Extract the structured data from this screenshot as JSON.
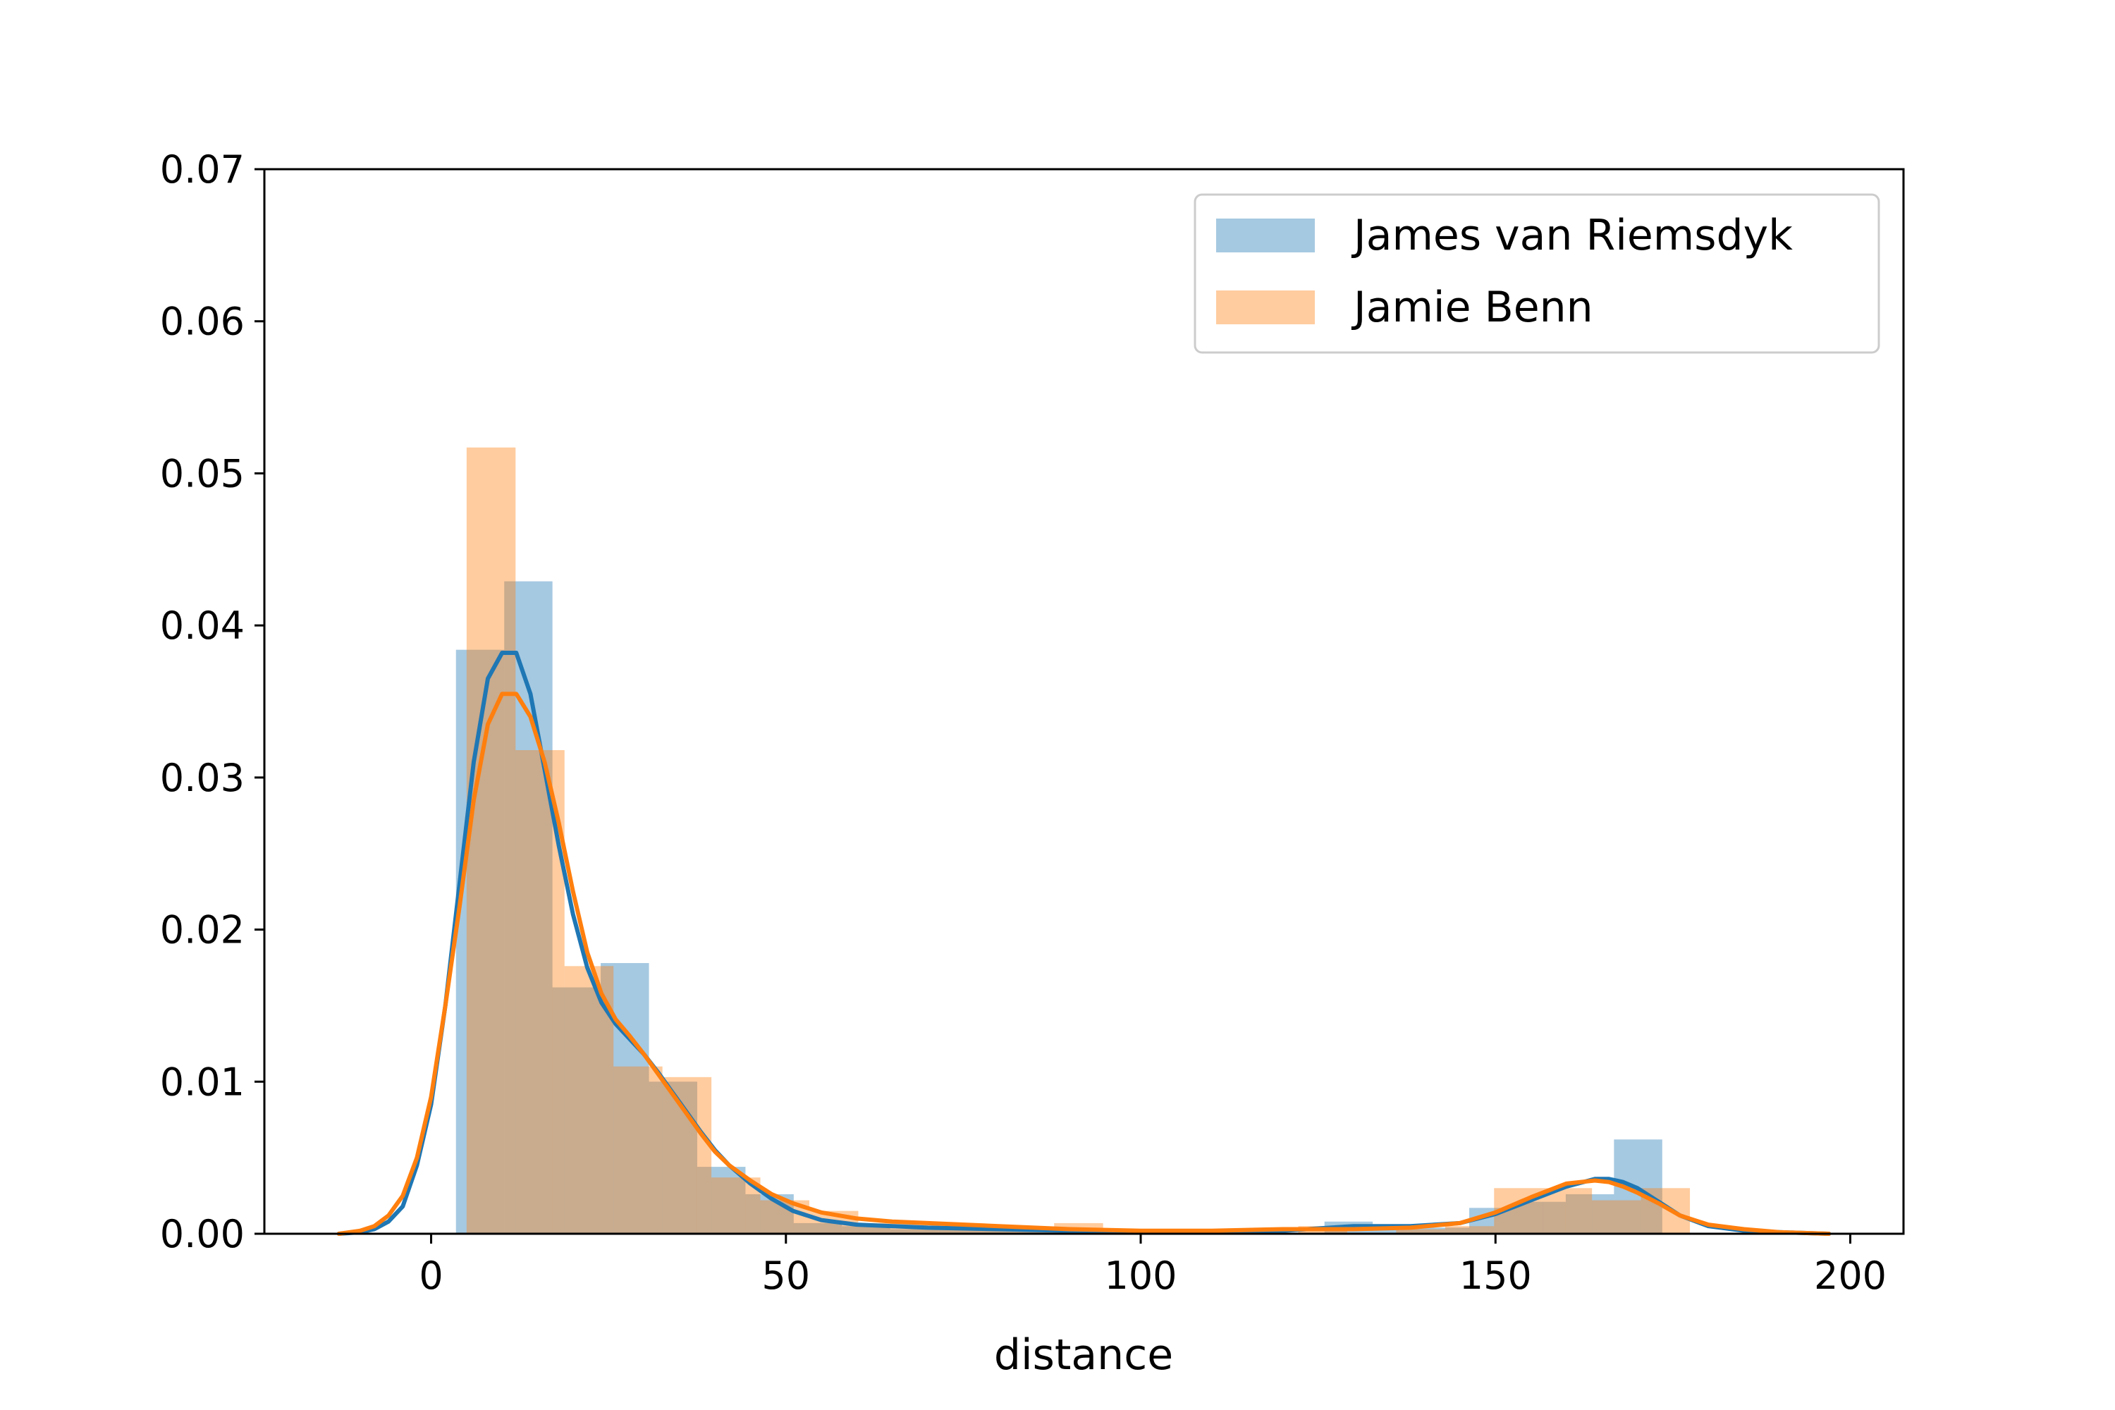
{
  "chart_data": {
    "type": "bar",
    "xlabel": "distance",
    "ylabel": "",
    "xlim": [
      -23.5,
      207.5
    ],
    "ylim": [
      0,
      0.07
    ],
    "x_ticks": [
      0,
      50,
      100,
      150,
      200
    ],
    "x_tick_labels": [
      "0",
      "50",
      "100",
      "150",
      "200"
    ],
    "y_ticks": [
      0,
      0.01,
      0.02,
      0.03,
      0.04,
      0.05,
      0.06,
      0.07
    ],
    "y_tick_labels": [
      "0.00",
      "0.01",
      "0.02",
      "0.03",
      "0.04",
      "0.05",
      "0.06",
      "0.07"
    ],
    "grid": false,
    "legend_position": "top-right",
    "series": [
      {
        "name": "James van Riemsdyk",
        "color": "#1f77b4",
        "histogram": [
          {
            "x0": 3.5,
            "x1": 10.3,
            "value": 0.0384
          },
          {
            "x0": 10.3,
            "x1": 17.1,
            "value": 0.0429
          },
          {
            "x0": 17.1,
            "x1": 23.9,
            "value": 0.0162
          },
          {
            "x0": 23.9,
            "x1": 30.7,
            "value": 0.0178
          },
          {
            "x0": 30.7,
            "x1": 37.5,
            "value": 0.01
          },
          {
            "x0": 37.5,
            "x1": 44.3,
            "value": 0.0044
          },
          {
            "x0": 44.3,
            "x1": 51.1,
            "value": 0.0026
          },
          {
            "x0": 51.1,
            "x1": 57.9,
            "value": 0.0007
          },
          {
            "x0": 57.9,
            "x1": 64.7,
            "value": 0.0005
          },
          {
            "x0": 64.7,
            "x1": 71.5,
            "value": 0.0003
          },
          {
            "x0": 71.5,
            "x1": 78.3,
            "value": 0.0003
          },
          {
            "x0": 78.3,
            "x1": 85.1,
            "value": 0.0002
          },
          {
            "x0": 85.1,
            "x1": 91.9,
            "value": 0.0002
          },
          {
            "x0": 91.9,
            "x1": 98.7,
            "value": 0.0002
          },
          {
            "x0": 125.9,
            "x1": 132.7,
            "value": 0.0008
          },
          {
            "x0": 132.7,
            "x1": 139.5,
            "value": 0.0004
          },
          {
            "x0": 139.5,
            "x1": 146.3,
            "value": 0.0004
          },
          {
            "x0": 146.3,
            "x1": 153.1,
            "value": 0.0017
          },
          {
            "x0": 153.1,
            "x1": 159.9,
            "value": 0.0021
          },
          {
            "x0": 159.9,
            "x1": 166.7,
            "value": 0.0026
          },
          {
            "x0": 166.7,
            "x1": 173.5,
            "value": 0.0062
          }
        ],
        "kde": {
          "x": [
            -13,
            -10,
            -8,
            -6,
            -4,
            -2,
            0,
            2,
            4,
            6,
            8,
            10,
            12,
            14,
            16,
            18,
            20,
            22,
            24,
            26,
            28,
            30,
            32,
            34,
            36,
            38,
            40,
            42,
            45,
            48,
            51,
            55,
            60,
            65,
            70,
            80,
            90,
            100,
            110,
            120,
            130,
            138,
            145,
            150,
            155,
            160,
            164,
            166,
            168,
            170,
            173,
            176,
            180,
            185,
            190,
            197
          ],
          "y": [
            0.0,
            0.0001,
            0.0003,
            0.0008,
            0.0018,
            0.0045,
            0.0085,
            0.015,
            0.023,
            0.031,
            0.0365,
            0.0382,
            0.0382,
            0.0355,
            0.0305,
            0.0255,
            0.021,
            0.0175,
            0.0152,
            0.0138,
            0.0128,
            0.0118,
            0.0106,
            0.0093,
            0.008,
            0.0067,
            0.0055,
            0.0045,
            0.0033,
            0.0023,
            0.0015,
            0.0009,
            0.0006,
            0.0005,
            0.0004,
            0.0003,
            0.0002,
            0.0001,
            0.0001,
            0.0002,
            0.0005,
            0.0005,
            0.0007,
            0.0013,
            0.0022,
            0.0031,
            0.0036,
            0.0036,
            0.0034,
            0.003,
            0.0021,
            0.0012,
            0.0005,
            0.0002,
            0.0001,
            0.0
          ]
        }
      },
      {
        "name": "Jamie Benn",
        "color": "#ff7f0e",
        "histogram": [
          {
            "x0": 5.0,
            "x1": 11.9,
            "value": 0.0517
          },
          {
            "x0": 11.9,
            "x1": 18.8,
            "value": 0.0318
          },
          {
            "x0": 18.8,
            "x1": 25.7,
            "value": 0.0176
          },
          {
            "x0": 25.7,
            "x1": 32.6,
            "value": 0.011
          },
          {
            "x0": 32.6,
            "x1": 39.5,
            "value": 0.0103
          },
          {
            "x0": 39.5,
            "x1": 46.4,
            "value": 0.0037
          },
          {
            "x0": 46.4,
            "x1": 53.3,
            "value": 0.0022
          },
          {
            "x0": 53.3,
            "x1": 60.2,
            "value": 0.0015
          },
          {
            "x0": 60.2,
            "x1": 67.1,
            "value": 0.0007
          },
          {
            "x0": 67.1,
            "x1": 74.0,
            "value": 0.0007
          },
          {
            "x0": 74.0,
            "x1": 80.9,
            "value": 0.0005
          },
          {
            "x0": 80.9,
            "x1": 87.8,
            "value": 0.0003
          },
          {
            "x0": 87.8,
            "x1": 94.7,
            "value": 0.0007
          },
          {
            "x0": 94.7,
            "x1": 101.6,
            "value": 0.0003
          },
          {
            "x0": 122.2,
            "x1": 129.1,
            "value": 0.0005
          },
          {
            "x0": 136.0,
            "x1": 142.9,
            "value": 0.0003
          },
          {
            "x0": 142.9,
            "x1": 149.8,
            "value": 0.0005
          },
          {
            "x0": 149.8,
            "x1": 156.7,
            "value": 0.003
          },
          {
            "x0": 156.7,
            "x1": 163.6,
            "value": 0.003
          },
          {
            "x0": 163.6,
            "x1": 170.5,
            "value": 0.0022
          },
          {
            "x0": 170.5,
            "x1": 177.4,
            "value": 0.003
          }
        ],
        "kde": {
          "x": [
            -13,
            -10,
            -8,
            -6,
            -4,
            -2,
            0,
            2,
            4,
            6,
            8,
            10,
            12,
            14,
            16,
            18,
            20,
            22,
            24,
            26,
            28,
            30,
            32,
            34,
            36,
            38,
            40,
            42,
            45,
            48,
            51,
            55,
            60,
            65,
            70,
            80,
            90,
            100,
            110,
            120,
            130,
            138,
            145,
            150,
            155,
            160,
            164,
            166,
            168,
            170,
            173,
            176,
            180,
            185,
            190,
            197
          ],
          "y": [
            0.0,
            0.0002,
            0.0005,
            0.0012,
            0.0025,
            0.005,
            0.009,
            0.015,
            0.0215,
            0.0285,
            0.0335,
            0.0355,
            0.0355,
            0.034,
            0.031,
            0.027,
            0.0225,
            0.0185,
            0.0158,
            0.0141,
            0.013,
            0.0118,
            0.0105,
            0.0092,
            0.0079,
            0.0066,
            0.0054,
            0.0045,
            0.0035,
            0.0026,
            0.002,
            0.0014,
            0.001,
            0.0008,
            0.0007,
            0.0005,
            0.0003,
            0.0002,
            0.0002,
            0.0003,
            0.0003,
            0.0004,
            0.0007,
            0.0014,
            0.0024,
            0.0033,
            0.0035,
            0.0034,
            0.0031,
            0.0027,
            0.002,
            0.0012,
            0.0006,
            0.0003,
            0.0001,
            0.0
          ]
        }
      }
    ]
  }
}
